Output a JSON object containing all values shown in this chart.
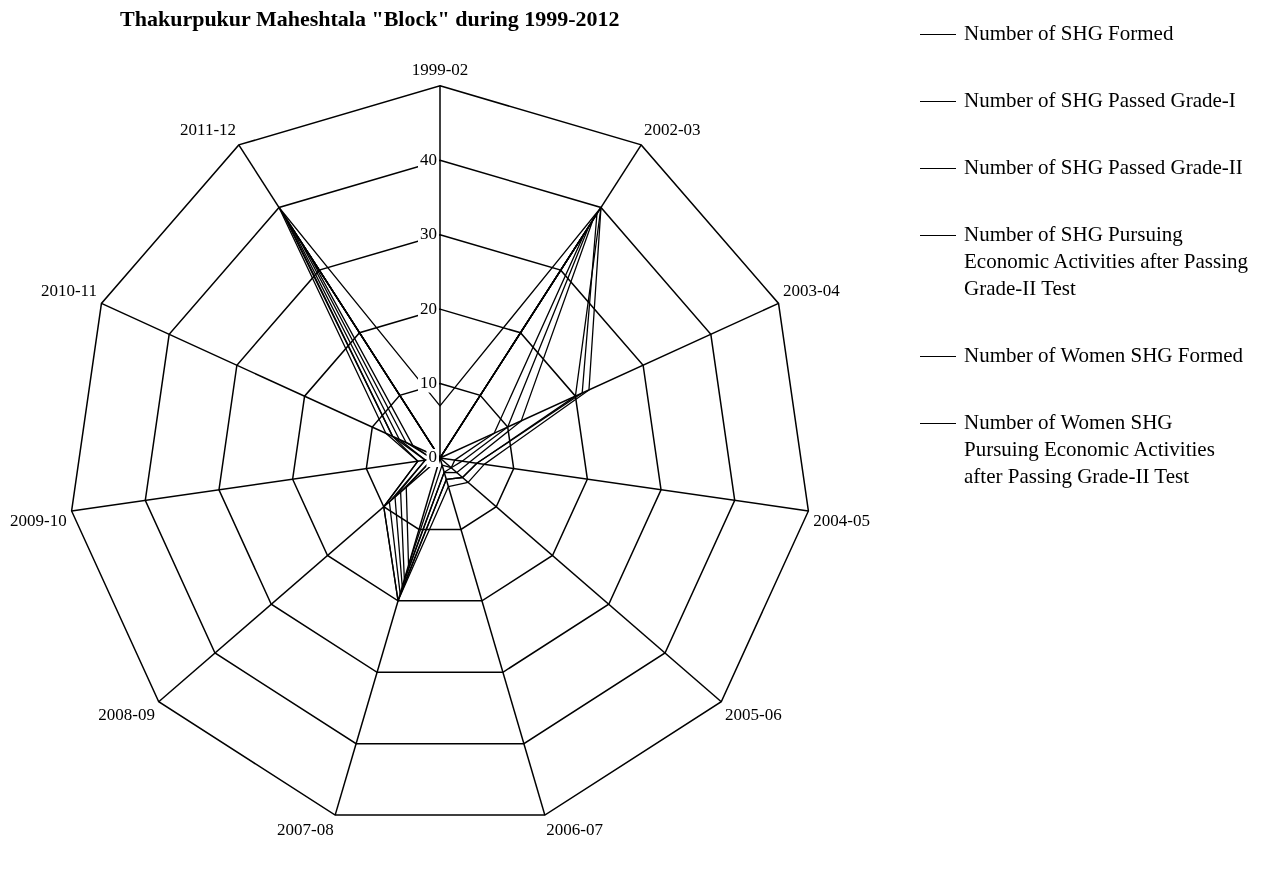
{
  "chart_data": {
    "type": "radar",
    "title": "Thakurpukur Maheshtala \"Block\" during 1999-2012",
    "categories": [
      "1999-02",
      "2002-03",
      "2003-04",
      "2004-05",
      "2005-06",
      "2006-07",
      "2007-08",
      "2008-09",
      "2009-10",
      "2010-11",
      "2011-12"
    ],
    "series": [
      {
        "name": "Number of SHG Formed",
        "color": "#000000",
        "values": [
          7,
          40,
          22,
          6,
          5,
          4,
          20,
          10,
          3,
          8,
          40
        ]
      },
      {
        "name": "Number of SHG Passed Grade-I",
        "color": "#000000",
        "values": [
          0,
          39,
          21,
          5,
          4,
          3,
          19,
          9,
          2,
          7,
          39
        ]
      },
      {
        "name": "Number of SHG Passed Grade-II",
        "color": "#000000",
        "values": [
          0,
          38,
          12,
          4,
          3,
          2,
          18,
          8,
          2,
          6,
          37
        ]
      },
      {
        "name": "Number of SHG Pursuing Economic Activities after Passing Grade-II Test",
        "color": "#000000",
        "values": [
          0,
          37,
          10,
          3,
          2,
          2,
          17,
          7,
          1,
          5,
          35
        ]
      },
      {
        "name": "Number of Women SHG Formed",
        "color": "#000000",
        "values": [
          0,
          40,
          20,
          5,
          4,
          3,
          20,
          10,
          3,
          7,
          38
        ]
      },
      {
        "name": "Number of Women SHG Pursuing Economic Activities after Passing Grade-II Test",
        "color": "#000000",
        "values": [
          0,
          36,
          8,
          2,
          2,
          1,
          15,
          6,
          1,
          4,
          33
        ]
      }
    ],
    "ylim": [
      0,
      50
    ],
    "yticks": [
      0,
      10,
      20,
      30,
      40
    ],
    "grid": true,
    "legend": "right",
    "marker": "none",
    "line_style": "solid"
  }
}
